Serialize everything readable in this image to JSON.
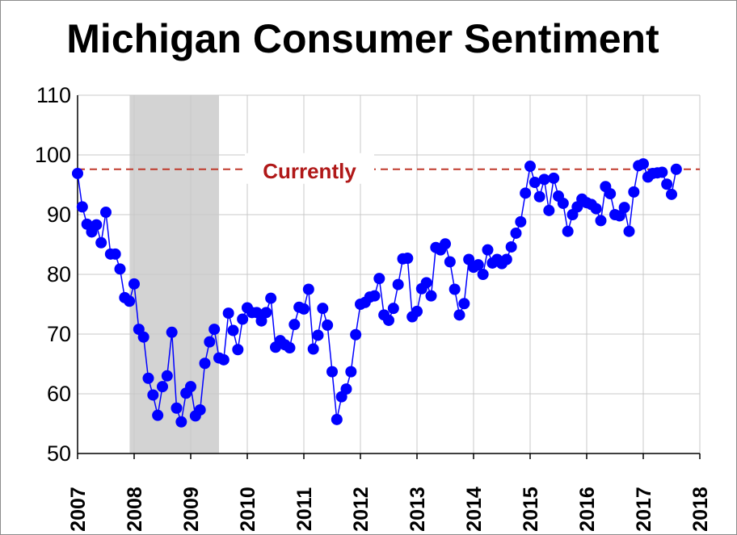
{
  "chart_data": {
    "type": "line",
    "title": "Michigan Consumer Sentiment",
    "xlabel": "",
    "ylabel": "",
    "xlim": [
      2007,
      2018
    ],
    "ylim": [
      50,
      110
    ],
    "y_ticks": [
      50,
      60,
      70,
      80,
      90,
      100,
      110
    ],
    "x_ticks": [
      "2007",
      "2008",
      "2009",
      "2010",
      "2011",
      "2012",
      "2013",
      "2014",
      "2015",
      "2016",
      "2017",
      "2018"
    ],
    "grid": true,
    "legend": "none",
    "markers": "filled circles",
    "colors": {
      "series": "#0000ff",
      "shading": "#d3d3d3",
      "reference": "#c0392b",
      "grid": "#c8c8c8"
    },
    "shaded_region": {
      "x_start": 2007.92,
      "x_end": 2009.5
    },
    "reference_line": {
      "value": 97.6,
      "label": "Currently",
      "style": "dashed"
    },
    "series": [
      {
        "name": "",
        "start": "2007-01",
        "frequency": "monthly",
        "values": [
          96.9,
          91.3,
          88.4,
          87.1,
          88.3,
          85.3,
          90.4,
          83.4,
          83.4,
          80.9,
          76.1,
          75.5,
          78.4,
          70.8,
          69.5,
          62.6,
          59.8,
          56.4,
          61.2,
          63.0,
          70.3,
          57.6,
          55.3,
          60.1,
          61.2,
          56.3,
          57.3,
          65.1,
          68.7,
          70.8,
          66.0,
          65.7,
          73.5,
          70.6,
          67.4,
          72.5,
          74.4,
          73.6,
          73.6,
          72.2,
          73.6,
          76.0,
          67.8,
          68.9,
          68.2,
          67.7,
          71.6,
          74.5,
          74.2,
          77.5,
          67.5,
          69.8,
          74.3,
          71.5,
          63.7,
          55.7,
          59.5,
          60.8,
          63.7,
          69.9,
          75.0,
          75.3,
          76.2,
          76.4,
          79.3,
          73.2,
          72.3,
          74.3,
          78.3,
          82.6,
          82.7,
          72.9,
          73.8,
          77.6,
          78.6,
          76.4,
          84.5,
          84.1,
          85.1,
          82.1,
          77.5,
          73.2,
          75.1,
          82.5,
          81.2,
          81.6,
          80.0,
          84.1,
          81.9,
          82.5,
          81.8,
          82.5,
          84.6,
          86.9,
          88.8,
          93.6,
          98.1,
          95.4,
          93.0,
          95.9,
          90.7,
          96.1,
          93.1,
          91.9,
          87.2,
          90.0,
          91.3,
          92.6,
          92.0,
          91.7,
          91.0,
          89.0,
          94.7,
          93.5,
          90.0,
          89.8,
          91.2,
          87.2,
          93.8,
          98.2,
          98.5,
          96.3,
          96.9,
          97.0,
          97.1,
          95.1,
          93.4,
          97.6
        ]
      }
    ]
  }
}
